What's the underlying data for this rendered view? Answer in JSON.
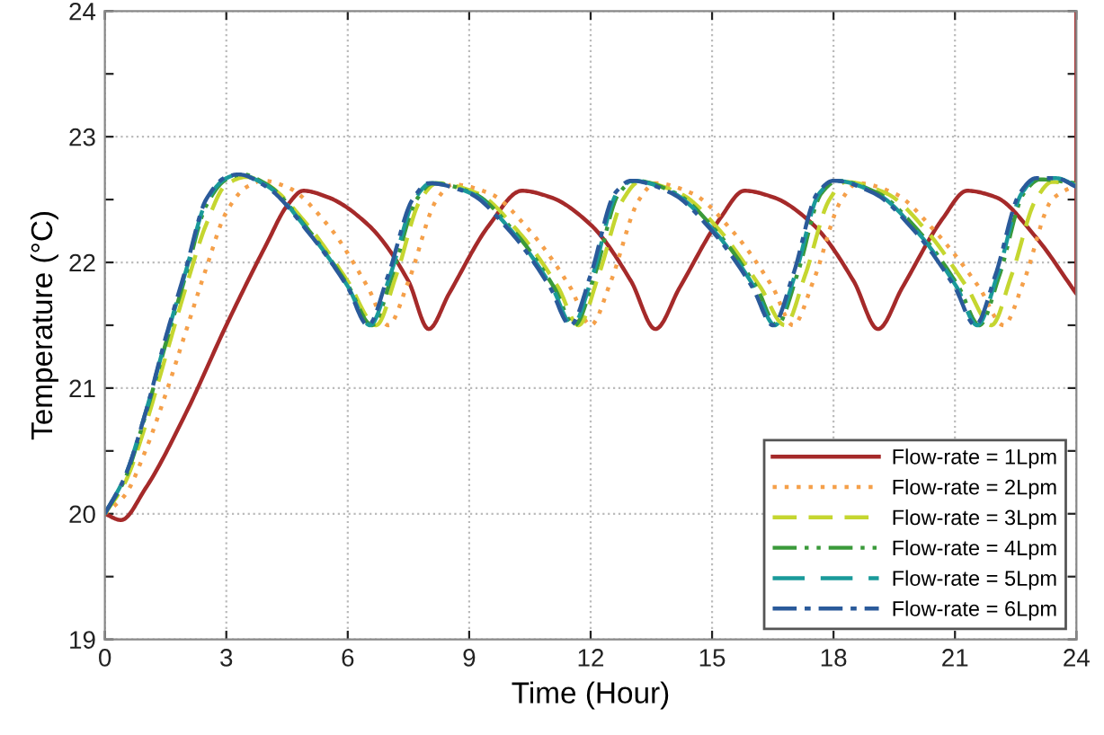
{
  "chart_data": {
    "type": "line",
    "xlabel": "Time (Hour)",
    "ylabel": "Temperature (°C)",
    "xlim": [
      0,
      24
    ],
    "xticks": [
      0,
      3,
      6,
      9,
      12,
      15,
      18,
      21,
      24
    ],
    "ylim": [
      19,
      24
    ],
    "yticks": [
      19,
      {
        "value": 19.5,
        "label": null
      },
      20,
      {
        "value": 20.5,
        "label": null
      },
      21,
      {
        "value": 21.5,
        "label": null
      },
      22,
      {
        "value": 22.5,
        "label": null
      },
      23,
      {
        "value": 23.5,
        "label": null
      },
      24
    ],
    "grid": true,
    "legend": "bottom right",
    "marker": "none",
    "series": [
      {
        "name": "Flow-rate = 1Lpm",
        "color": "#a52a2a",
        "line_style": "solid",
        "x": [
          0,
          0.4,
          1,
          2,
          3,
          4,
          4.5,
          4.9,
          5.5,
          6.5,
          7.5,
          8.0,
          8.5,
          9.5,
          10.3,
          11,
          12,
          13,
          13.6,
          14.2,
          15.2,
          15.8,
          16.5,
          17.5,
          18.5,
          19.1,
          19.7,
          20.7,
          21.3,
          22,
          23,
          24,
          24
        ],
        "values": [
          20,
          19.95,
          20.2,
          20.8,
          21.5,
          22.15,
          22.45,
          22.57,
          22.52,
          22.3,
          21.85,
          21.47,
          21.75,
          22.3,
          22.57,
          22.52,
          22.3,
          21.85,
          21.47,
          21.8,
          22.35,
          22.57,
          22.52,
          22.3,
          21.85,
          21.47,
          21.8,
          22.35,
          22.57,
          22.52,
          22.2,
          21.75,
          24
        ]
      },
      {
        "name": "Flow-rate = 2Lpm",
        "color": "#f5a04a",
        "line_style": "dotted",
        "x": [
          0,
          0.5,
          1,
          1.5,
          2,
          2.5,
          3,
          3.5,
          3.9,
          4.5,
          5.5,
          6.5,
          7.0,
          7.5,
          8.2,
          8.6,
          9.5,
          10.5,
          11.5,
          12.0,
          12.5,
          13.2,
          13.6,
          14.5,
          15.5,
          16.5,
          17.0,
          17.5,
          18.2,
          18.6,
          19.5,
          20.5,
          21.6,
          22.2,
          22.7,
          23.4,
          24
        ],
        "values": [
          20,
          20.15,
          20.5,
          20.95,
          21.45,
          21.95,
          22.4,
          22.6,
          22.65,
          22.6,
          22.3,
          21.8,
          21.5,
          21.85,
          22.5,
          22.62,
          22.55,
          22.25,
          21.8,
          21.5,
          21.85,
          22.5,
          22.63,
          22.55,
          22.25,
          21.8,
          21.5,
          21.85,
          22.5,
          22.63,
          22.55,
          22.25,
          21.8,
          21.5,
          21.85,
          22.5,
          22.62
        ]
      },
      {
        "name": "Flow-rate = 3Lpm",
        "color": "#c5d630",
        "line_style": "dashed",
        "x": [
          0,
          0.5,
          1,
          1.5,
          2,
          2.5,
          3,
          3.5,
          4,
          5,
          6,
          6.7,
          7.2,
          7.8,
          8.2,
          9.2,
          10.2,
          11.2,
          11.7,
          12.2,
          12.8,
          13.2,
          14.2,
          15.2,
          16.2,
          16.8,
          17.3,
          17.9,
          18.3,
          19.3,
          20.3,
          21.3,
          21.9,
          22.4,
          23,
          23.4,
          24
        ],
        "values": [
          20,
          20.25,
          20.7,
          21.25,
          21.8,
          22.3,
          22.62,
          22.68,
          22.62,
          22.3,
          21.85,
          21.5,
          21.9,
          22.5,
          22.63,
          22.55,
          22.25,
          21.8,
          21.5,
          21.9,
          22.5,
          22.64,
          22.55,
          22.25,
          21.8,
          21.5,
          21.9,
          22.5,
          22.64,
          22.55,
          22.25,
          21.8,
          21.5,
          21.9,
          22.5,
          22.64,
          22.62
        ]
      },
      {
        "name": "Flow-rate = 4Lpm",
        "color": "#3a9a3a",
        "line_style": "dashdotdot",
        "x": [
          0,
          0.5,
          1,
          1.5,
          2,
          2.5,
          3,
          3.4,
          4,
          5,
          6,
          6.6,
          7.1,
          7.7,
          8.1,
          9.1,
          10.1,
          11.1,
          11.6,
          12.1,
          12.7,
          13.1,
          14.1,
          15.1,
          16.1,
          16.6,
          17.1,
          17.7,
          18.1,
          19.1,
          20.1,
          21.1,
          21.6,
          22.1,
          22.7,
          23.1,
          24
        ],
        "values": [
          20,
          20.28,
          20.78,
          21.35,
          21.9,
          22.45,
          22.66,
          22.7,
          22.62,
          22.27,
          21.82,
          21.5,
          21.9,
          22.5,
          22.63,
          22.55,
          22.25,
          21.8,
          21.5,
          21.9,
          22.55,
          22.65,
          22.55,
          22.25,
          21.8,
          21.5,
          21.9,
          22.55,
          22.65,
          22.55,
          22.25,
          21.8,
          21.5,
          21.9,
          22.55,
          22.66,
          22.63
        ]
      },
      {
        "name": "Flow-rate = 5Lpm",
        "color": "#1a9a9a",
        "line_style": "longdash",
        "x": [
          0,
          0.5,
          1,
          1.5,
          2,
          2.5,
          3,
          3.3,
          4,
          5,
          6,
          6.55,
          7.05,
          7.65,
          8.05,
          9.05,
          10.05,
          11.05,
          11.55,
          12.05,
          12.65,
          13.05,
          14.05,
          15.05,
          16.05,
          16.55,
          17.05,
          17.65,
          18.05,
          19.05,
          20.05,
          21.05,
          21.55,
          22.05,
          22.65,
          23.05,
          23.5,
          24
        ],
        "values": [
          20,
          20.3,
          20.8,
          21.38,
          21.93,
          22.48,
          22.67,
          22.7,
          22.61,
          22.26,
          21.81,
          21.5,
          21.9,
          22.5,
          22.63,
          22.55,
          22.25,
          21.8,
          21.5,
          21.9,
          22.55,
          22.65,
          22.55,
          22.25,
          21.8,
          21.5,
          21.9,
          22.55,
          22.65,
          22.55,
          22.25,
          21.8,
          21.5,
          21.9,
          22.55,
          22.67,
          22.67,
          22.61
        ]
      },
      {
        "name": "Flow-rate = 6Lpm",
        "color": "#2a5a9a",
        "line_style": "dashdot",
        "x": [
          0,
          0.5,
          1,
          1.5,
          2,
          2.5,
          3,
          3.3,
          4,
          5,
          6,
          6.5,
          7,
          7.6,
          8,
          9,
          10,
          11,
          11.5,
          12,
          12.6,
          13,
          14,
          15,
          16,
          16.5,
          17,
          17.6,
          18,
          19,
          20,
          21,
          21.5,
          22,
          22.6,
          23,
          23.5,
          24
        ],
        "values": [
          20,
          20.3,
          20.8,
          21.4,
          21.95,
          22.5,
          22.68,
          22.7,
          22.6,
          22.25,
          21.8,
          21.5,
          21.9,
          22.5,
          22.63,
          22.55,
          22.25,
          21.8,
          21.5,
          21.9,
          22.55,
          22.65,
          22.55,
          22.25,
          21.8,
          21.5,
          21.9,
          22.55,
          22.65,
          22.55,
          22.25,
          21.8,
          21.5,
          21.9,
          22.55,
          22.67,
          22.67,
          22.6
        ]
      }
    ]
  }
}
